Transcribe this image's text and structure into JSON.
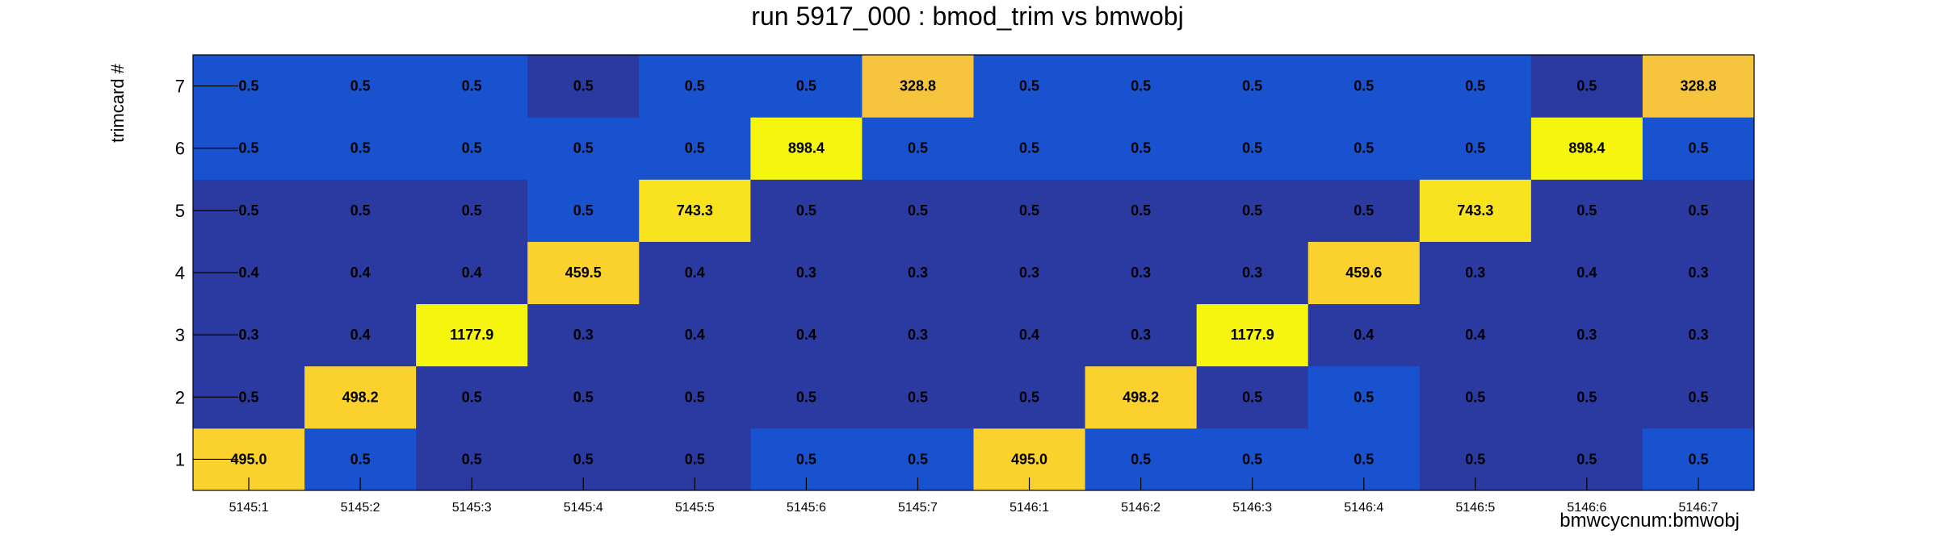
{
  "chart_data": {
    "type": "heatmap",
    "title": "run 5917_000 : bmod_trim vs bmwobj",
    "xlabel": "bmwcycnum:bmwobj",
    "ylabel": "trimcard #",
    "x_categories": [
      "5145:1",
      "5145:2",
      "5145:3",
      "5145:4",
      "5145:5",
      "5145:6",
      "5145:7",
      "5146:1",
      "5146:2",
      "5146:3",
      "5146:4",
      "5146:5",
      "5146:6",
      "5146:7"
    ],
    "y_categories": [
      "1",
      "2",
      "3",
      "4",
      "5",
      "6",
      "7"
    ],
    "values": [
      [
        "495.0",
        "0.5",
        "0.5",
        "0.5",
        "0.5",
        "0.5",
        "0.5",
        "495.0",
        "0.5",
        "0.5",
        "0.5",
        "0.5",
        "0.5",
        "0.5"
      ],
      [
        "0.5",
        "498.2",
        "0.5",
        "0.5",
        "0.5",
        "0.5",
        "0.5",
        "0.5",
        "498.2",
        "0.5",
        "0.5",
        "0.5",
        "0.5",
        "0.5"
      ],
      [
        "0.3",
        "0.4",
        "1177.9",
        "0.3",
        "0.4",
        "0.4",
        "0.3",
        "0.4",
        "0.3",
        "1177.9",
        "0.4",
        "0.4",
        "0.3",
        "0.3"
      ],
      [
        "0.4",
        "0.4",
        "0.4",
        "459.5",
        "0.4",
        "0.3",
        "0.3",
        "0.3",
        "0.3",
        "0.3",
        "459.6",
        "0.3",
        "0.4",
        "0.3"
      ],
      [
        "0.5",
        "0.5",
        "0.5",
        "0.5",
        "743.3",
        "0.5",
        "0.5",
        "0.5",
        "0.5",
        "0.5",
        "0.5",
        "743.3",
        "0.5",
        "0.5"
      ],
      [
        "0.5",
        "0.5",
        "0.5",
        "0.5",
        "0.5",
        "898.4",
        "0.5",
        "0.5",
        "0.5",
        "0.5",
        "0.5",
        "0.5",
        "898.4",
        "0.5"
      ],
      [
        "0.5",
        "0.5",
        "0.5",
        "0.5",
        "0.5",
        "0.5",
        "328.8",
        "0.5",
        "0.5",
        "0.5",
        "0.5",
        "0.5",
        "0.5",
        "328.8"
      ]
    ],
    "cell_colors": [
      [
        "#fbd12e",
        "#1852cf",
        "#2b3aa0",
        "#2b3aa0",
        "#2b3aa0",
        "#1852cf",
        "#1852cf",
        "#fbd12e",
        "#1852cf",
        "#1852cf",
        "#1852cf",
        "#2b3aa0",
        "#2b3aa0",
        "#1852cf"
      ],
      [
        "#2b3aa0",
        "#fbd12e",
        "#2b3aa0",
        "#2b3aa0",
        "#2b3aa0",
        "#2b3aa0",
        "#2b3aa0",
        "#2b3aa0",
        "#fbd12e",
        "#2b3aa0",
        "#1852cf",
        "#2b3aa0",
        "#2b3aa0",
        "#2b3aa0"
      ],
      [
        "#2b3aa0",
        "#2b3aa0",
        "#f5f50d",
        "#2b3aa0",
        "#2b3aa0",
        "#2b3aa0",
        "#2b3aa0",
        "#2b3aa0",
        "#2b3aa0",
        "#f5f50d",
        "#2b3aa0",
        "#2b3aa0",
        "#2b3aa0",
        "#2b3aa0"
      ],
      [
        "#2b3aa0",
        "#2b3aa0",
        "#2b3aa0",
        "#fbd12e",
        "#2b3aa0",
        "#2b3aa0",
        "#2b3aa0",
        "#2b3aa0",
        "#2b3aa0",
        "#2b3aa0",
        "#fbd12e",
        "#2b3aa0",
        "#2b3aa0",
        "#2b3aa0"
      ],
      [
        "#2b3aa0",
        "#2b3aa0",
        "#2b3aa0",
        "#1852cf",
        "#f9e31e",
        "#2b3aa0",
        "#2b3aa0",
        "#2b3aa0",
        "#2b3aa0",
        "#2b3aa0",
        "#2b3aa0",
        "#f9e31e",
        "#2b3aa0",
        "#2b3aa0"
      ],
      [
        "#1852cf",
        "#1852cf",
        "#1852cf",
        "#1852cf",
        "#1852cf",
        "#f5f50d",
        "#1852cf",
        "#1852cf",
        "#1852cf",
        "#1852cf",
        "#1852cf",
        "#1852cf",
        "#f5f50d",
        "#1852cf"
      ],
      [
        "#1852cf",
        "#1852cf",
        "#1852cf",
        "#2b3aa0",
        "#1852cf",
        "#1852cf",
        "#f7c43d",
        "#1852cf",
        "#1852cf",
        "#1852cf",
        "#1852cf",
        "#1852cf",
        "#2b3aa0",
        "#f7c43d"
      ]
    ]
  }
}
